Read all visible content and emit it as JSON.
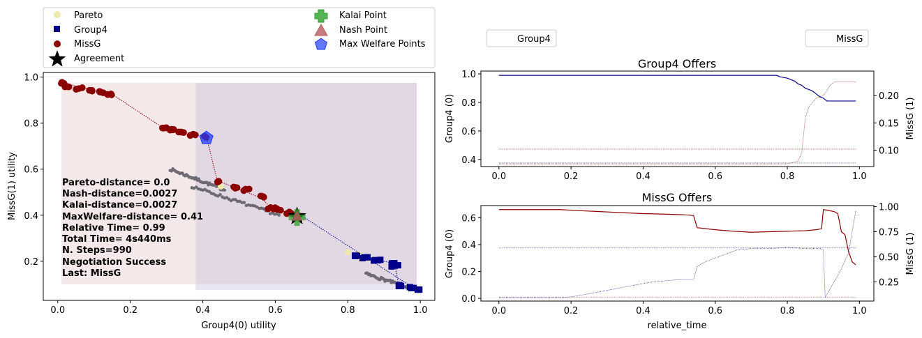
{
  "chart_data": [
    {
      "type": "scatter",
      "xlabel": "Group4(0) utility",
      "ylabel": "MissG(1) utility",
      "xlim": [
        -0.04,
        1.04
      ],
      "ylim": [
        0.03,
        1.02
      ],
      "xticks": [
        "0.0",
        "0.2",
        "0.4",
        "0.6",
        "0.8",
        "1.0"
      ],
      "yticks": [
        "0.2",
        "0.4",
        "0.6",
        "0.8",
        "1.0"
      ],
      "legend": {
        "placement": "top (outside)",
        "entries": [
          "Pareto",
          "Group4",
          "MissG",
          "Agreement",
          "Kalai Point",
          "Nash Point",
          "Max Welfare Points"
        ]
      },
      "colors": {
        "pareto": "#eee8aa",
        "group4": "#00008b",
        "missg": "#8b0000",
        "agreement": "#000000",
        "kalai": "#2ca02c",
        "nash": "#b85c5c",
        "welfare": "#1f3cff",
        "outcomes": "#6e6a73",
        "region_missg": "#f5e8e8",
        "region_group4": "#e2d8e4",
        "region_lower": "#e6e6f3"
      },
      "outcome_segments": [
        {
          "from": [
            0.31,
            0.6
          ],
          "to": [
            0.46,
            0.51
          ]
        },
        {
          "from": [
            0.37,
            0.525
          ],
          "to": [
            0.61,
            0.4
          ]
        },
        {
          "from": [
            0.85,
            0.145
          ],
          "to": [
            0.99,
            0.075
          ]
        }
      ],
      "pareto_points": [
        [
          0.45,
          0.525
        ],
        [
          0.63,
          0.405
        ],
        [
          0.8,
          0.24
        ],
        [
          0.83,
          0.23
        ]
      ],
      "missg_offers": {
        "clusters": [
          [
            0.01,
            0.975
          ],
          [
            0.03,
            0.96
          ],
          [
            0.06,
            0.95
          ],
          [
            0.09,
            0.94
          ],
          [
            0.12,
            0.935
          ],
          [
            0.14,
            0.925
          ],
          [
            0.29,
            0.78
          ],
          [
            0.31,
            0.77
          ],
          [
            0.34,
            0.76
          ],
          [
            0.37,
            0.75
          ],
          [
            0.4,
            0.74
          ],
          [
            0.44,
            0.545
          ],
          [
            0.49,
            0.52
          ],
          [
            0.52,
            0.51
          ],
          [
            0.56,
            0.48
          ],
          [
            0.59,
            0.43
          ],
          [
            0.61,
            0.425
          ],
          [
            0.64,
            0.41
          ]
        ],
        "path": [
          [
            0.01,
            0.975
          ],
          [
            0.15,
            0.925
          ],
          [
            0.29,
            0.78
          ],
          [
            0.41,
            0.74
          ],
          [
            0.44,
            0.55
          ],
          [
            0.49,
            0.52
          ],
          [
            0.56,
            0.475
          ],
          [
            0.59,
            0.43
          ],
          [
            0.64,
            0.41
          ],
          [
            0.66,
            0.41
          ]
        ]
      },
      "group4_offers": {
        "clusters": [
          [
            0.82,
            0.225
          ],
          [
            0.85,
            0.215
          ],
          [
            0.88,
            0.205
          ],
          [
            0.93,
            0.19
          ],
          [
            0.93,
            0.18
          ],
          [
            0.94,
            0.095
          ],
          [
            0.98,
            0.085
          ],
          [
            0.99,
            0.075
          ]
        ],
        "path": [
          [
            0.82,
            0.225
          ],
          [
            0.93,
            0.19
          ],
          [
            0.94,
            0.095
          ],
          [
            0.99,
            0.075
          ],
          [
            0.66,
            0.41
          ]
        ]
      },
      "agreement": [
        0.66,
        0.395
      ],
      "kalai_point": [
        0.66,
        0.39
      ],
      "nash_point": [
        0.66,
        0.395
      ],
      "max_welfare_points": [
        [
          0.41,
          0.735
        ]
      ],
      "regions": {
        "missg": {
          "x": [
            0.01,
            0.38
          ],
          "y": [
            0.1,
            0.975
          ]
        },
        "group4": {
          "x": [
            0.38,
            0.99
          ],
          "y": [
            0.1,
            0.975
          ]
        },
        "lower": {
          "x": [
            0.38,
            0.99
          ],
          "y": [
            0.075,
            0.1
          ]
        }
      },
      "annotations": [
        "Pareto-distance=  0.0",
        "Nash-distance=0.0027",
        "Kalai-distance=0.0027",
        "MaxWelfare-distance= 0.41",
        "Relative Time= 0.99",
        "Total Time= 4s440ms",
        "N. Steps=990",
        "Negotiation Success",
        "Last: MissG"
      ]
    },
    {
      "type": "line",
      "title": "Group4 Offers",
      "xlabel": "",
      "ylabel": "Group4 (0)",
      "ylabel_right": "MissG (1)",
      "xlim": [
        -0.05,
        1.04
      ],
      "ylim": [
        0.35,
        1.02
      ],
      "ylim_right": [
        0.07,
        0.245
      ],
      "xticks": [
        "0.0",
        "0.2",
        "0.4",
        "0.6",
        "0.8",
        "1.0"
      ],
      "yticks": [
        "0.4",
        "0.6",
        "0.8",
        "1.0"
      ],
      "yticks_right": [
        "0.10",
        "0.15",
        "0.20"
      ],
      "legend": {
        "placement": "above",
        "entries": [
          "Group4"
        ]
      },
      "series": [
        {
          "name": "Group4",
          "color": "#00008b",
          "x": [
            0.0,
            0.77,
            0.78,
            0.8,
            0.82,
            0.83,
            0.84,
            0.85,
            0.86,
            0.87,
            0.88,
            0.89,
            0.9,
            0.91,
            0.95,
            0.99
          ],
          "values": [
            0.99,
            0.99,
            0.98,
            0.97,
            0.95,
            0.93,
            0.92,
            0.9,
            0.89,
            0.88,
            0.86,
            0.84,
            0.83,
            0.81,
            0.81,
            0.81
          ]
        },
        {
          "color": "#8b0000",
          "axis": "right",
          "x": [
            0.0,
            0.8,
            0.83,
            0.84,
            0.85,
            0.86,
            0.88,
            0.9,
            0.92,
            0.93,
            0.99
          ],
          "values": [
            0.075,
            0.075,
            0.08,
            0.095,
            0.16,
            0.18,
            0.195,
            0.2,
            0.22,
            0.225,
            0.225
          ]
        }
      ],
      "reference_lines": [
        {
          "axis": "right",
          "value": 0.102,
          "color": "#8b0000"
        },
        {
          "axis": "left",
          "value": 0.375,
          "color": "#00008b"
        }
      ]
    },
    {
      "type": "line",
      "title": "MissG Offers",
      "xlabel": "relative_time",
      "ylabel": "Group4 (0)",
      "ylabel_right": "MissG (1)",
      "xlim": [
        -0.05,
        1.04
      ],
      "ylim": [
        -0.02,
        0.69
      ],
      "ylim_right": [
        0.06,
        1.01
      ],
      "xticks": [
        "0.0",
        "0.2",
        "0.4",
        "0.6",
        "0.8",
        "1.0"
      ],
      "yticks": [
        "0.0",
        "0.2",
        "0.4",
        "0.6"
      ],
      "yticks_right": [
        "0.25",
        "0.50",
        "0.75",
        "1.00"
      ],
      "legend": {
        "placement": "above",
        "entries": [
          "MissG"
        ]
      },
      "series": [
        {
          "name": "MissG",
          "color": "#8b0000",
          "axis": "right",
          "x": [
            0.0,
            0.17,
            0.22,
            0.28,
            0.34,
            0.4,
            0.46,
            0.5,
            0.53,
            0.54,
            0.55,
            0.6,
            0.65,
            0.7,
            0.75,
            0.8,
            0.85,
            0.88,
            0.895,
            0.9,
            0.91,
            0.93,
            0.94,
            0.95,
            0.96,
            0.97,
            0.98,
            0.99
          ],
          "values": [
            0.97,
            0.97,
            0.96,
            0.95,
            0.94,
            0.93,
            0.925,
            0.92,
            0.915,
            0.91,
            0.79,
            0.77,
            0.755,
            0.745,
            0.75,
            0.755,
            0.76,
            0.77,
            0.78,
            0.97,
            0.965,
            0.95,
            0.93,
            0.75,
            0.72,
            0.55,
            0.45,
            0.42
          ]
        },
        {
          "color": "#00008b",
          "axis": "left",
          "x": [
            0.0,
            0.18,
            0.22,
            0.26,
            0.3,
            0.34,
            0.38,
            0.42,
            0.46,
            0.5,
            0.53,
            0.54,
            0.55,
            0.58,
            0.62,
            0.66,
            0.7,
            0.75,
            0.8,
            0.85,
            0.89,
            0.9,
            0.905,
            0.95,
            0.97,
            0.98,
            0.99
          ],
          "values": [
            0.005,
            0.005,
            0.02,
            0.04,
            0.06,
            0.08,
            0.1,
            0.12,
            0.13,
            0.14,
            0.14,
            0.14,
            0.24,
            0.28,
            0.32,
            0.36,
            0.37,
            0.37,
            0.38,
            0.37,
            0.37,
            0.36,
            0.005,
            0.22,
            0.34,
            0.5,
            0.65
          ]
        }
      ],
      "reference_lines": [
        {
          "axis": "left",
          "value": 0.375,
          "color": "#00008b"
        },
        {
          "axis": "right",
          "value": 0.1,
          "color": "#8b0000"
        }
      ]
    }
  ]
}
